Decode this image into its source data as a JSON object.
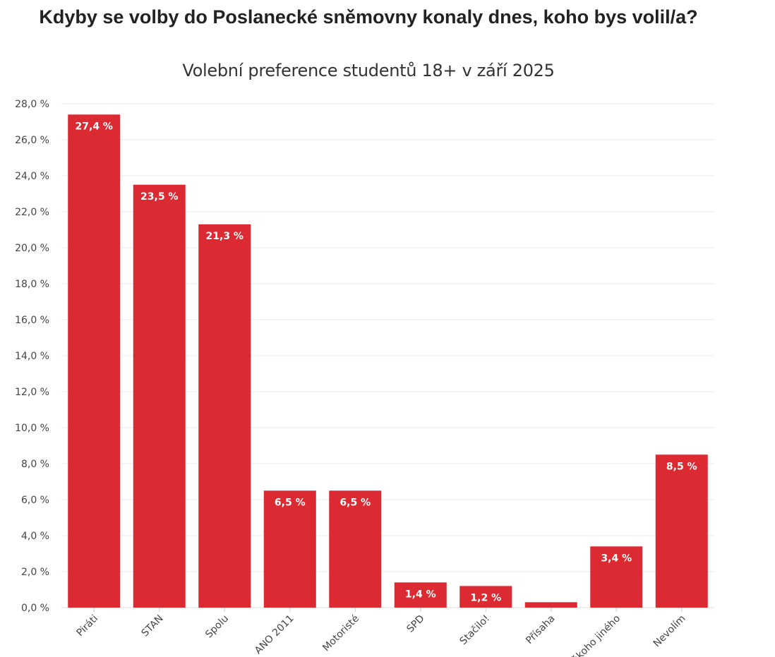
{
  "chart_data": {
    "type": "bar",
    "title": "Kdyby se volby do Poslanecké sněmovny konaly dnes, koho bys volil/a?",
    "subtitle": "Volební preference studentů 18+ v září 2025",
    "categories": [
      "Piráti",
      "STAN",
      "Spolu",
      "ANO 2011",
      "Motoristé",
      "SPD",
      "Stačilo!",
      "Přísaha",
      "Někoho jiného",
      "Nevolím"
    ],
    "values": [
      27.4,
      23.5,
      21.3,
      6.5,
      6.5,
      1.4,
      1.2,
      0.3,
      3.4,
      8.5
    ],
    "data_labels": [
      "27,4 %",
      "23,5 %",
      "21,3 %",
      "6,5 %",
      "6,5 %",
      "1,4 %",
      "1,2 %",
      "",
      "3,4 %",
      "8,5 %"
    ],
    "yticks": [
      "0,0 %",
      "2,0 %",
      "4,0 %",
      "6,0 %",
      "8,0 %",
      "10,0 %",
      "12,0 %",
      "14,0 %",
      "16,0 %",
      "18,0 %",
      "20,0 %",
      "22,0 %",
      "24,0 %",
      "26,0 %",
      "28,0 %"
    ],
    "ylim": [
      0,
      28
    ],
    "grid": true,
    "bar_color": "#dc2a33",
    "xlabel": "",
    "ylabel": ""
  }
}
